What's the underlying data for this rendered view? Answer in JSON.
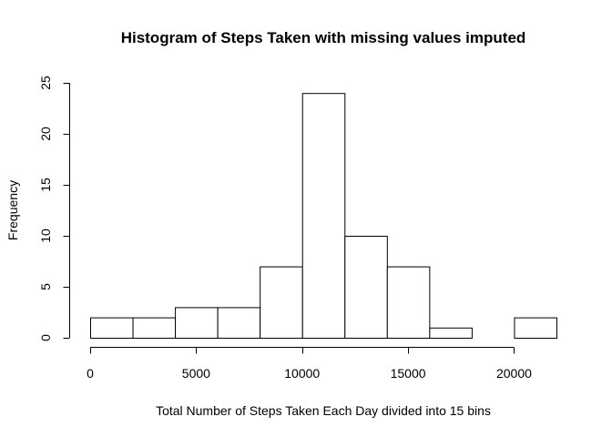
{
  "chart_data": {
    "type": "bar",
    "title": "Histogram of Steps Taken with missing values imputed",
    "xlabel": "Total Number of Steps Taken Each Day divided into 15 bins",
    "ylabel": "Frequency",
    "bins": [
      {
        "start": 0,
        "end": 2000,
        "count": 2
      },
      {
        "start": 2000,
        "end": 4000,
        "count": 2
      },
      {
        "start": 4000,
        "end": 6000,
        "count": 3
      },
      {
        "start": 6000,
        "end": 8000,
        "count": 3
      },
      {
        "start": 8000,
        "end": 10000,
        "count": 7
      },
      {
        "start": 10000,
        "end": 12000,
        "count": 24
      },
      {
        "start": 12000,
        "end": 14000,
        "count": 10
      },
      {
        "start": 14000,
        "end": 16000,
        "count": 7
      },
      {
        "start": 16000,
        "end": 18000,
        "count": 1
      },
      {
        "start": 18000,
        "end": 20000,
        "count": 0
      },
      {
        "start": 20000,
        "end": 22000,
        "count": 2
      }
    ],
    "xlim": [
      0,
      22000
    ],
    "ylim": [
      0,
      25
    ],
    "x_ticks": [
      0,
      5000,
      10000,
      15000,
      20000
    ],
    "y_ticks": [
      0,
      5,
      10,
      15,
      20,
      25
    ],
    "grid": false,
    "bar_fill": "#ffffff",
    "bar_stroke": "#000000"
  }
}
